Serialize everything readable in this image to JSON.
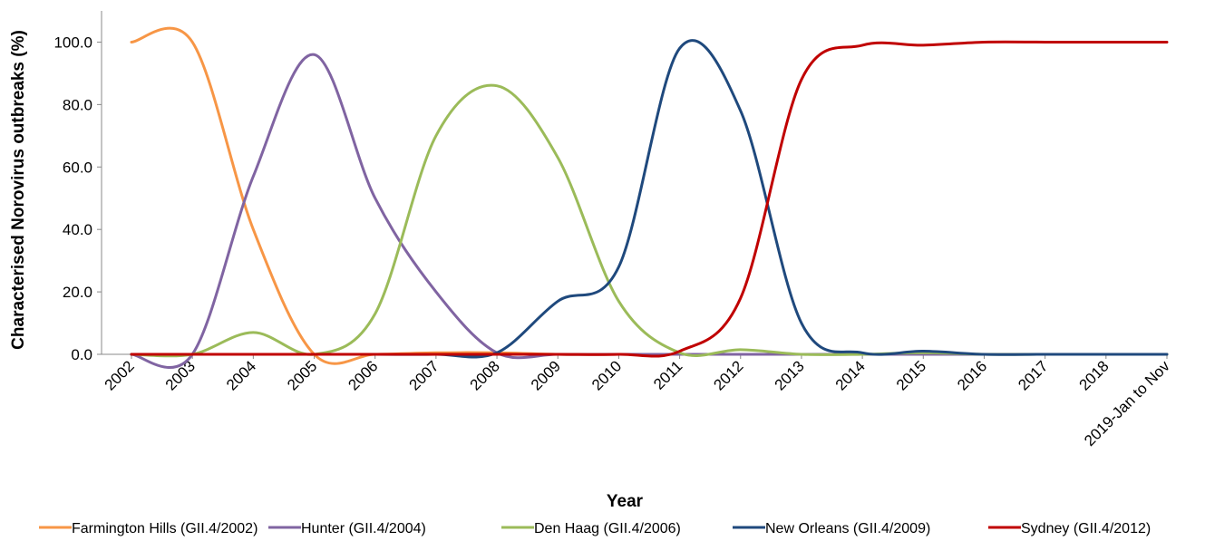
{
  "chart_data": {
    "type": "line",
    "title": "",
    "xlabel": "Year",
    "ylabel": "Characterised Norovirus outbreaks (%)",
    "categories": [
      "2002",
      "2003",
      "2004",
      "2005",
      "2006",
      "2007",
      "2008",
      "2009",
      "2010",
      "2011",
      "2012",
      "2013",
      "2014",
      "2015",
      "2016",
      "2017",
      "2018",
      "2019-Jan to Nov"
    ],
    "ylim": [
      0,
      110
    ],
    "yticks": [
      0,
      20,
      40,
      60,
      80,
      100
    ],
    "ytick_labels": [
      "0.0",
      "20.0",
      "40.0",
      "60.0",
      "80.0",
      "100.0"
    ],
    "grid": false,
    "smooth": true,
    "legend_position": "bottom",
    "series": [
      {
        "name": "Farmington Hills (GII.4/2002)",
        "color": "#F79646",
        "values": [
          100,
          100,
          40,
          0,
          0,
          0.5,
          0.5,
          0,
          0,
          0,
          0,
          0,
          0,
          0,
          0,
          0,
          0,
          0
        ]
      },
      {
        "name": "Hunter (GII.4/2004)",
        "color": "#8064A2",
        "values": [
          0,
          0,
          57,
          96,
          50,
          20,
          0.5,
          0,
          0,
          0,
          0,
          0,
          0,
          0,
          0,
          0,
          0,
          0
        ]
      },
      {
        "name": "Den Haag (GII.4/2006)",
        "color": "#9BBB59",
        "values": [
          0,
          0,
          7,
          0,
          13,
          70,
          86,
          63,
          17,
          0.5,
          1.5,
          0,
          0,
          0.5,
          0,
          0,
          0,
          0
        ]
      },
      {
        "name": "New Orleans (GII.4/2009)",
        "color": "#1F497D",
        "values": [
          0,
          0,
          0,
          0,
          0,
          0,
          0.5,
          17,
          28,
          98,
          78,
          10,
          0.5,
          1,
          0,
          0,
          0,
          0
        ]
      },
      {
        "name": "Sydney (GII.4/2012)",
        "color": "#C00000",
        "values": [
          0,
          0,
          0,
          0,
          0,
          0,
          0,
          0,
          0,
          1,
          18,
          88,
          99,
          99,
          100,
          100,
          100,
          100
        ]
      }
    ]
  }
}
